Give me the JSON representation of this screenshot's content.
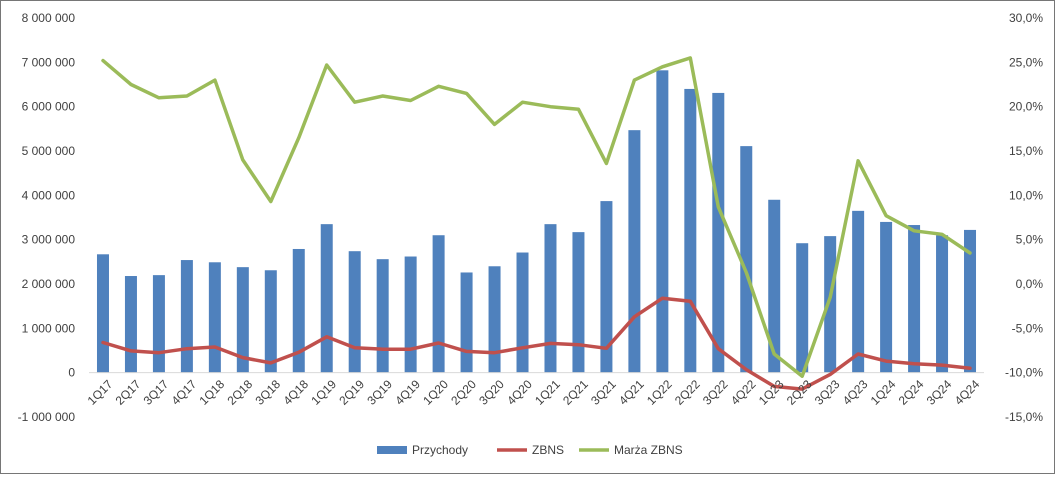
{
  "chart_data": {
    "type": "bar",
    "categories": [
      "1Q17",
      "2Q17",
      "3Q17",
      "4Q17",
      "1Q18",
      "2Q18",
      "3Q18",
      "4Q18",
      "1Q19",
      "2Q19",
      "3Q19",
      "4Q19",
      "1Q20",
      "2Q20",
      "3Q20",
      "4Q20",
      "1Q21",
      "2Q21",
      "3Q21",
      "4Q21",
      "1Q22",
      "2Q22",
      "3Q22",
      "4Q22",
      "1Q23",
      "2Q23",
      "3Q23",
      "4Q23",
      "1Q24",
      "2Q24",
      "3Q24",
      "4Q24"
    ],
    "series": [
      {
        "name": "Przychody",
        "type": "bar",
        "axis": "left",
        "color": "#4F81BD",
        "values": [
          2670000,
          2180000,
          2200000,
          2540000,
          2490000,
          2380000,
          2310000,
          2790000,
          3350000,
          2740000,
          2560000,
          2620000,
          3100000,
          2260000,
          2400000,
          2710000,
          3350000,
          3170000,
          3870000,
          5470000,
          6820000,
          6400000,
          6310000,
          5110000,
          3900000,
          2920000,
          3080000,
          3650000,
          3400000,
          3330000,
          3100000,
          3220000
        ]
      },
      {
        "name": "ZBNS",
        "type": "line",
        "axis": "left",
        "color": "#C0504D",
        "values": [
          680000,
          490000,
          450000,
          540000,
          580000,
          340000,
          220000,
          460000,
          810000,
          560000,
          530000,
          530000,
          670000,
          480000,
          450000,
          560000,
          660000,
          630000,
          550000,
          1260000,
          1680000,
          1610000,
          540000,
          70000,
          -310000,
          -370000,
          -40000,
          420000,
          260000,
          200000,
          170000,
          100000
        ]
      },
      {
        "name": "Marża ZBNS",
        "type": "line",
        "axis": "right",
        "color": "#9BBB59",
        "values": [
          25.2,
          22.5,
          21.0,
          21.2,
          23.0,
          14.0,
          9.3,
          16.5,
          24.7,
          20.5,
          21.2,
          20.7,
          22.3,
          21.5,
          18.0,
          20.5,
          20.0,
          19.7,
          13.6,
          23.0,
          24.5,
          25.5,
          8.7,
          1.3,
          -7.9,
          -10.4,
          -1.5,
          13.9,
          7.7,
          6.0,
          5.6,
          3.5
        ]
      }
    ],
    "y_left": {
      "min": -1000000,
      "max": 8000000,
      "step": 1000000,
      "tick_labels": [
        "-1 000 000",
        "0",
        "1 000 000",
        "2 000 000",
        "3 000 000",
        "4 000 000",
        "5 000 000",
        "6 000 000",
        "7 000 000",
        "8 000 000"
      ]
    },
    "y_right": {
      "min": -15,
      "max": 30,
      "step": 5,
      "tick_labels": [
        "-15,0%",
        "-10,0%",
        "-5,0%",
        "0,0%",
        "5,0%",
        "10,0%",
        "15,0%",
        "20,0%",
        "25,0%",
        "30,0%"
      ]
    },
    "grid": false,
    "legend": {
      "position": "bottom",
      "entries": [
        "Przychody",
        "ZBNS",
        "Marża ZBNS"
      ]
    },
    "title": "",
    "xlabel": "",
    "ylabel": ""
  }
}
